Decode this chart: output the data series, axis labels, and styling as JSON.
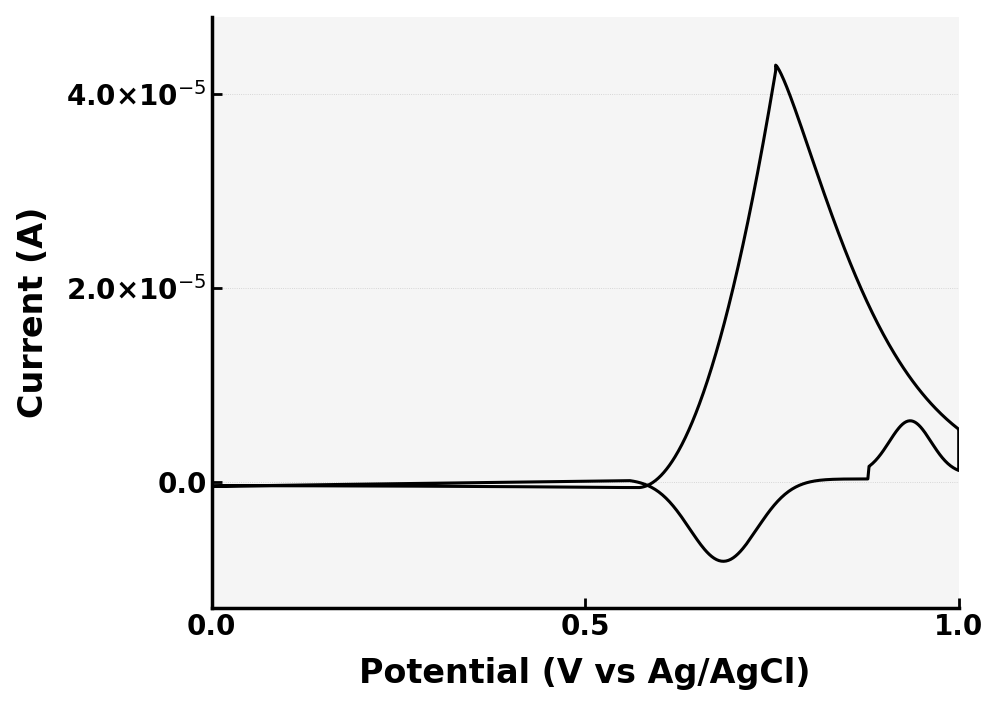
{
  "xlabel": "Potential (V vs Ag/AgCl)",
  "ylabel": "Current (A)",
  "xlim": [
    0.0,
    1.0
  ],
  "ylim": [
    -1.3e-05,
    4.8e-05
  ],
  "xticks": [
    0.0,
    0.5,
    1.0
  ],
  "yticks": [
    0.0,
    2e-05,
    4e-05
  ],
  "xlabel_fontsize": 24,
  "ylabel_fontsize": 24,
  "tick_fontsize": 20,
  "line_color": "#000000",
  "line_width": 2.2,
  "background_color": "#f5f5f5",
  "figure_background": "#ffffff",
  "spine_linewidth": 2.5
}
